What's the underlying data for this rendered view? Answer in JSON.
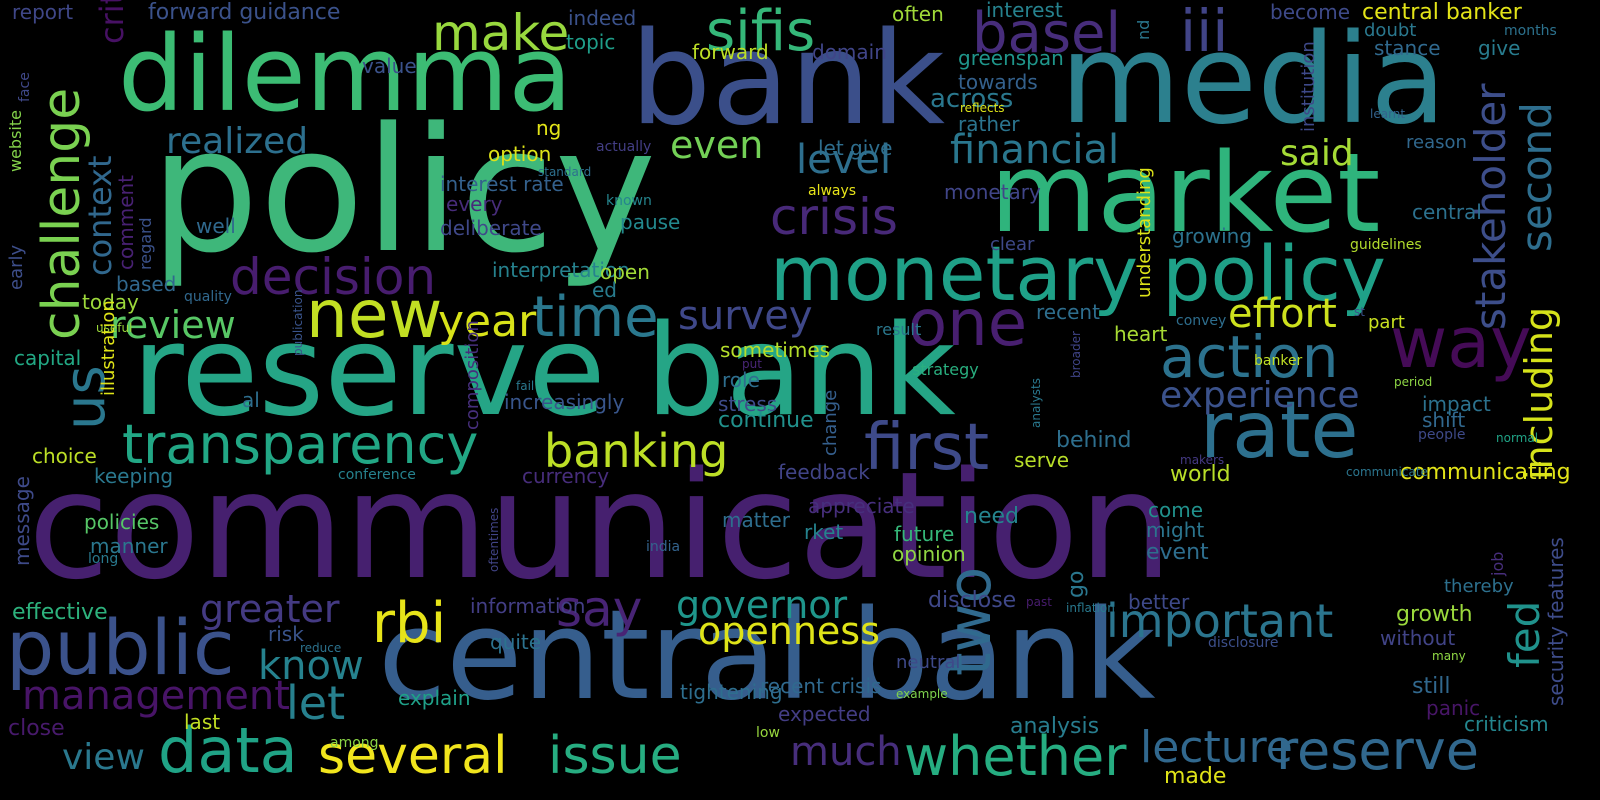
{
  "words": [
    {
      "t": "communication",
      "c": "#46206f"
    },
    {
      "t": "policy",
      "c": "#3eb77a"
    },
    {
      "t": "reserve bank",
      "c": "#25a586"
    },
    {
      "t": "bank",
      "c": "#3b4f8a"
    },
    {
      "t": "media",
      "c": "#2c808e"
    },
    {
      "t": "central bank",
      "c": "#365e8d"
    },
    {
      "t": "market",
      "c": "#2fb47c"
    },
    {
      "t": "dilemma",
      "c": "#3cbc74"
    },
    {
      "t": "monetary policy",
      "c": "#1fa188"
    },
    {
      "t": "rate",
      "c": "#2d708e"
    },
    {
      "t": "new",
      "c": "#c2df23"
    },
    {
      "t": "decision",
      "c": "#481d6f"
    },
    {
      "t": "transparency",
      "c": "#22a785"
    },
    {
      "t": "first",
      "c": "#3e4a89"
    },
    {
      "t": "action",
      "c": "#2c728e"
    },
    {
      "t": "one",
      "c": "#481f70"
    },
    {
      "t": "way",
      "c": "#450b57"
    },
    {
      "t": "crisis",
      "c": "#482979"
    },
    {
      "t": "time",
      "c": "#2a788e"
    },
    {
      "t": "rbi",
      "c": "#e7e419"
    },
    {
      "t": "public",
      "c": "#3b528b"
    },
    {
      "t": "data",
      "c": "#20a386"
    },
    {
      "t": "whether",
      "c": "#26ad81"
    },
    {
      "t": "reserve",
      "c": "#31688e"
    },
    {
      "t": "several",
      "c": "#f1e51d"
    },
    {
      "t": "issue",
      "c": "#27ad81"
    },
    {
      "t": "important",
      "c": "#2b758e"
    },
    {
      "t": "governor",
      "c": "#1f968b"
    },
    {
      "t": "say",
      "c": "#482475"
    },
    {
      "t": "openness",
      "c": "#dfe318"
    },
    {
      "t": "lecture",
      "c": "#31688e"
    },
    {
      "t": "banking",
      "c": "#bddf26"
    },
    {
      "t": "sifis",
      "c": "#35b779"
    },
    {
      "t": "make",
      "c": "#98d83e"
    },
    {
      "t": "basel",
      "c": "#472d7b"
    },
    {
      "t": "iii",
      "c": "#414487"
    },
    {
      "t": "review",
      "c": "#58c765"
    },
    {
      "t": "realized",
      "c": "#2d708e"
    },
    {
      "t": "year",
      "c": "#d8e219"
    },
    {
      "t": "survey",
      "c": "#3f4889"
    },
    {
      "t": "level",
      "c": "#2e6f8e"
    },
    {
      "t": "even",
      "c": "#73d056"
    },
    {
      "t": "financial",
      "c": "#2a778e"
    },
    {
      "t": "said",
      "c": "#a5db36"
    },
    {
      "t": "effort",
      "c": "#cde11d"
    },
    {
      "t": "experience",
      "c": "#3b528b"
    },
    {
      "t": "greater",
      "c": "#443a83"
    },
    {
      "t": "management",
      "c": "#481467"
    },
    {
      "t": "know",
      "c": "#26828e"
    },
    {
      "t": "let",
      "c": "#27808e"
    },
    {
      "t": "much",
      "c": "#472e7c"
    },
    {
      "t": "view",
      "c": "#2a788e"
    },
    {
      "t": "context",
      "c": "#31688e"
    },
    {
      "t": "challenge",
      "c": "#7ad151"
    },
    {
      "t": "us",
      "c": "#2a778e"
    },
    {
      "t": "two",
      "c": "#306a8e"
    },
    {
      "t": "stakeholder",
      "c": "#3d4e8a"
    },
    {
      "t": "second",
      "c": "#2e6e8e"
    },
    {
      "t": "including",
      "c": "#d5e21a"
    },
    {
      "t": "fed",
      "c": "#20928c"
    },
    {
      "t": "security features",
      "c": "#3e4c8a"
    },
    {
      "t": "forward guidance",
      "c": "#3b528b"
    },
    {
      "t": "report",
      "c": "#3f4788"
    },
    {
      "t": "often",
      "c": "#a0da39"
    },
    {
      "t": "interest",
      "c": "#26828e"
    },
    {
      "t": "become",
      "c": "#3e4a89"
    },
    {
      "t": "central banker",
      "c": "#e3e418"
    },
    {
      "t": "indeed",
      "c": "#3b528b"
    },
    {
      "t": "topic",
      "c": "#1f9e89"
    },
    {
      "t": "value",
      "c": "#3b528b"
    },
    {
      "t": "forward",
      "c": "#bddf26"
    },
    {
      "t": "domain",
      "c": "#404588"
    },
    {
      "t": "greenspan",
      "c": "#1f968b"
    },
    {
      "t": "towards",
      "c": "#34618d"
    },
    {
      "t": "across",
      "c": "#2a788e"
    },
    {
      "t": "rather",
      "c": "#2b748e"
    },
    {
      "t": "reflects",
      "c": "#dde318"
    },
    {
      "t": "doubt",
      "c": "#2a788e"
    },
    {
      "t": "stance",
      "c": "#30698e"
    },
    {
      "t": "give",
      "c": "#287c8e"
    },
    {
      "t": "months",
      "c": "#2c728e"
    },
    {
      "t": "learnt",
      "c": "#33638d"
    },
    {
      "t": "reason",
      "c": "#31688e"
    },
    {
      "t": "ng",
      "c": "#e2e418"
    },
    {
      "t": "option",
      "c": "#dde318"
    },
    {
      "t": "actually",
      "c": "#433e85"
    },
    {
      "t": "standard",
      "c": "#2d708e"
    },
    {
      "t": "let give",
      "c": "#2e6e8e"
    },
    {
      "t": "always",
      "c": "#e7e419"
    },
    {
      "t": "monetary",
      "c": "#404588"
    },
    {
      "t": "interest rate",
      "c": "#34618d"
    },
    {
      "t": "every",
      "c": "#472c7a"
    },
    {
      "t": "deliberate",
      "c": "#3f4889"
    },
    {
      "t": "pause",
      "c": "#23898e"
    },
    {
      "t": "known",
      "c": "#25858e"
    },
    {
      "t": "clear",
      "c": "#3e4989"
    },
    {
      "t": "growing",
      "c": "#2c728e"
    },
    {
      "t": "guidelines",
      "c": "#b2dd2d"
    },
    {
      "t": "central",
      "c": "#2c718e"
    },
    {
      "t": "well",
      "c": "#30698e"
    },
    {
      "t": "interpretation",
      "c": "#26828e"
    },
    {
      "t": "open",
      "c": "#a2da37"
    },
    {
      "t": "ed",
      "c": "#287c8e"
    },
    {
      "t": "today",
      "c": "#9dd93b"
    },
    {
      "t": "based",
      "c": "#31688e"
    },
    {
      "t": "capital",
      "c": "#22a884"
    },
    {
      "t": "quality",
      "c": "#31688e"
    },
    {
      "t": "useful",
      "c": "#9bd93c"
    },
    {
      "t": "recent",
      "c": "#2e6e8e"
    },
    {
      "t": "convey",
      "c": "#2e6e8e"
    },
    {
      "t": "st",
      "c": "#3b528b"
    },
    {
      "t": "part",
      "c": "#c8e020"
    },
    {
      "t": "result",
      "c": "#2a788e"
    },
    {
      "t": "heart",
      "c": "#a8db34"
    },
    {
      "t": "sometimes",
      "c": "#b5de2b"
    },
    {
      "t": "put",
      "c": "#482576"
    },
    {
      "t": "role",
      "c": "#2e6e8e"
    },
    {
      "t": "strategy",
      "c": "#29af7f"
    },
    {
      "t": "banker",
      "c": "#c0df25"
    },
    {
      "t": "period",
      "c": "#8ed645"
    },
    {
      "t": "fail",
      "c": "#2a788e"
    },
    {
      "t": "al",
      "c": "#2e6e8e"
    },
    {
      "t": "increasingly",
      "c": "#39568c"
    },
    {
      "t": "stress",
      "c": "#3e4c8a"
    },
    {
      "t": "continue",
      "c": "#21918c"
    },
    {
      "t": "impact",
      "c": "#2c728e"
    },
    {
      "t": "shift",
      "c": "#31688e"
    },
    {
      "t": "people",
      "c": "#3e4a89"
    },
    {
      "t": "normal",
      "c": "#20a386"
    },
    {
      "t": "behind",
      "c": "#2e6f8e"
    },
    {
      "t": "serve",
      "c": "#b8de29"
    },
    {
      "t": "world",
      "c": "#b8de29"
    },
    {
      "t": "communicating",
      "c": "#e2e418"
    },
    {
      "t": "makers",
      "c": "#443983"
    },
    {
      "t": "communicate",
      "c": "#2b758e"
    },
    {
      "t": "feedback",
      "c": "#414487"
    },
    {
      "t": "currency",
      "c": "#472d7b"
    },
    {
      "t": "choice",
      "c": "#bddf26"
    },
    {
      "t": "keeping",
      "c": "#2a788e"
    },
    {
      "t": "conference",
      "c": "#26828e"
    },
    {
      "t": "policies",
      "c": "#56c667"
    },
    {
      "t": "manner",
      "c": "#2a778e"
    },
    {
      "t": "appreciate",
      "c": "#472f7d"
    },
    {
      "t": "rket",
      "c": "#25838e"
    },
    {
      "t": "need",
      "c": "#25848e"
    },
    {
      "t": "come",
      "c": "#21918c"
    },
    {
      "t": "might",
      "c": "#2b758e"
    },
    {
      "t": "event",
      "c": "#2e6e8e"
    },
    {
      "t": "matter",
      "c": "#2e6e8e"
    },
    {
      "t": "future",
      "c": "#35b779"
    },
    {
      "t": "opinion",
      "c": "#90d743"
    },
    {
      "t": "long",
      "c": "#29798e"
    },
    {
      "t": "india",
      "c": "#33638d"
    },
    {
      "t": "thereby",
      "c": "#2d708e"
    },
    {
      "t": "effective",
      "c": "#2db27d"
    },
    {
      "t": "information",
      "c": "#433e85"
    },
    {
      "t": "risk",
      "c": "#3a548c"
    },
    {
      "t": "reduce",
      "c": "#2c728e"
    },
    {
      "t": "quite",
      "c": "#2c728e"
    },
    {
      "t": "disclose",
      "c": "#3f4889"
    },
    {
      "t": "past",
      "c": "#481c6e"
    },
    {
      "t": "inflation",
      "c": "#29798e"
    },
    {
      "t": "better",
      "c": "#3e4989"
    },
    {
      "t": "growth",
      "c": "#9bd93c"
    },
    {
      "t": "without",
      "c": "#414487"
    },
    {
      "t": "disclosure",
      "c": "#3c4f8a"
    },
    {
      "t": "many",
      "c": "#8fd744"
    },
    {
      "t": "still",
      "c": "#31688e"
    },
    {
      "t": "panic",
      "c": "#481668"
    },
    {
      "t": "criticism",
      "c": "#24868e"
    },
    {
      "t": "explain",
      "c": "#1fa088"
    },
    {
      "t": "tightening",
      "c": "#2e6e8e"
    },
    {
      "t": "recent crisis",
      "c": "#30698e"
    },
    {
      "t": "expected",
      "c": "#433d84"
    },
    {
      "t": "analysis",
      "c": "#287d8e"
    },
    {
      "t": "neutral",
      "c": "#3e4989"
    },
    {
      "t": "example",
      "c": "#7fd34e"
    },
    {
      "t": "close",
      "c": "#481a6c"
    },
    {
      "t": "last",
      "c": "#c2df23"
    },
    {
      "t": "among",
      "c": "#8bd646"
    },
    {
      "t": "low",
      "c": "#98d83e"
    },
    {
      "t": "made",
      "c": "#dfe318"
    },
    {
      "t": "face",
      "c": "#3f4889"
    },
    {
      "t": "early",
      "c": "#3d4e8a"
    },
    {
      "t": "website",
      "c": "#84d44b"
    },
    {
      "t": "criteria",
      "c": "#471164"
    },
    {
      "t": "comment",
      "c": "#482173"
    },
    {
      "t": "regard",
      "c": "#3b528b"
    },
    {
      "t": "illustration",
      "c": "#dfe318"
    },
    {
      "t": "message",
      "c": "#3e4a89"
    },
    {
      "t": "composition",
      "c": "#472f7d"
    },
    {
      "t": "publication",
      "c": "#3a548c"
    },
    {
      "t": "nd",
      "c": "#2a778e"
    },
    {
      "t": "institution",
      "c": "#3e4989"
    },
    {
      "t": "understanding",
      "c": "#dde318"
    },
    {
      "t": "change",
      "c": "#355f8d"
    },
    {
      "t": "analysts",
      "c": "#2a788e"
    },
    {
      "t": "broader",
      "c": "#404588"
    },
    {
      "t": "go",
      "c": "#2a778e"
    },
    {
      "t": "oftentimes",
      "c": "#414487"
    },
    {
      "t": "job",
      "c": "#472e7c"
    }
  ]
}
